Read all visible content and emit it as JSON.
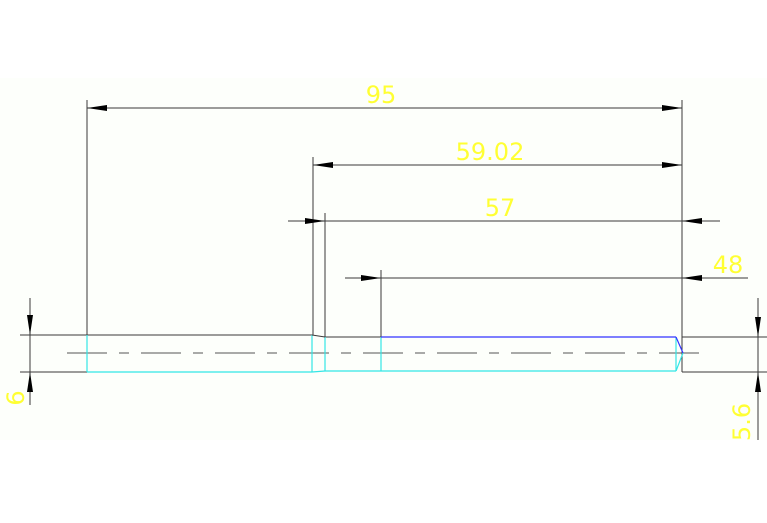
{
  "colors": {
    "background": "#fdfffb",
    "dimension_line": "#3a3a3a",
    "dimension_text": "#ffff33",
    "outline_cyan": "#33e6e6",
    "outline_blue": "#3333ff",
    "centerline": "#555555"
  },
  "dimensions": {
    "overall_length": "95",
    "length_59": "59.02",
    "length_57": "57",
    "length_48": "48",
    "diameter_left": "6",
    "diameter_right": "5.6"
  }
}
